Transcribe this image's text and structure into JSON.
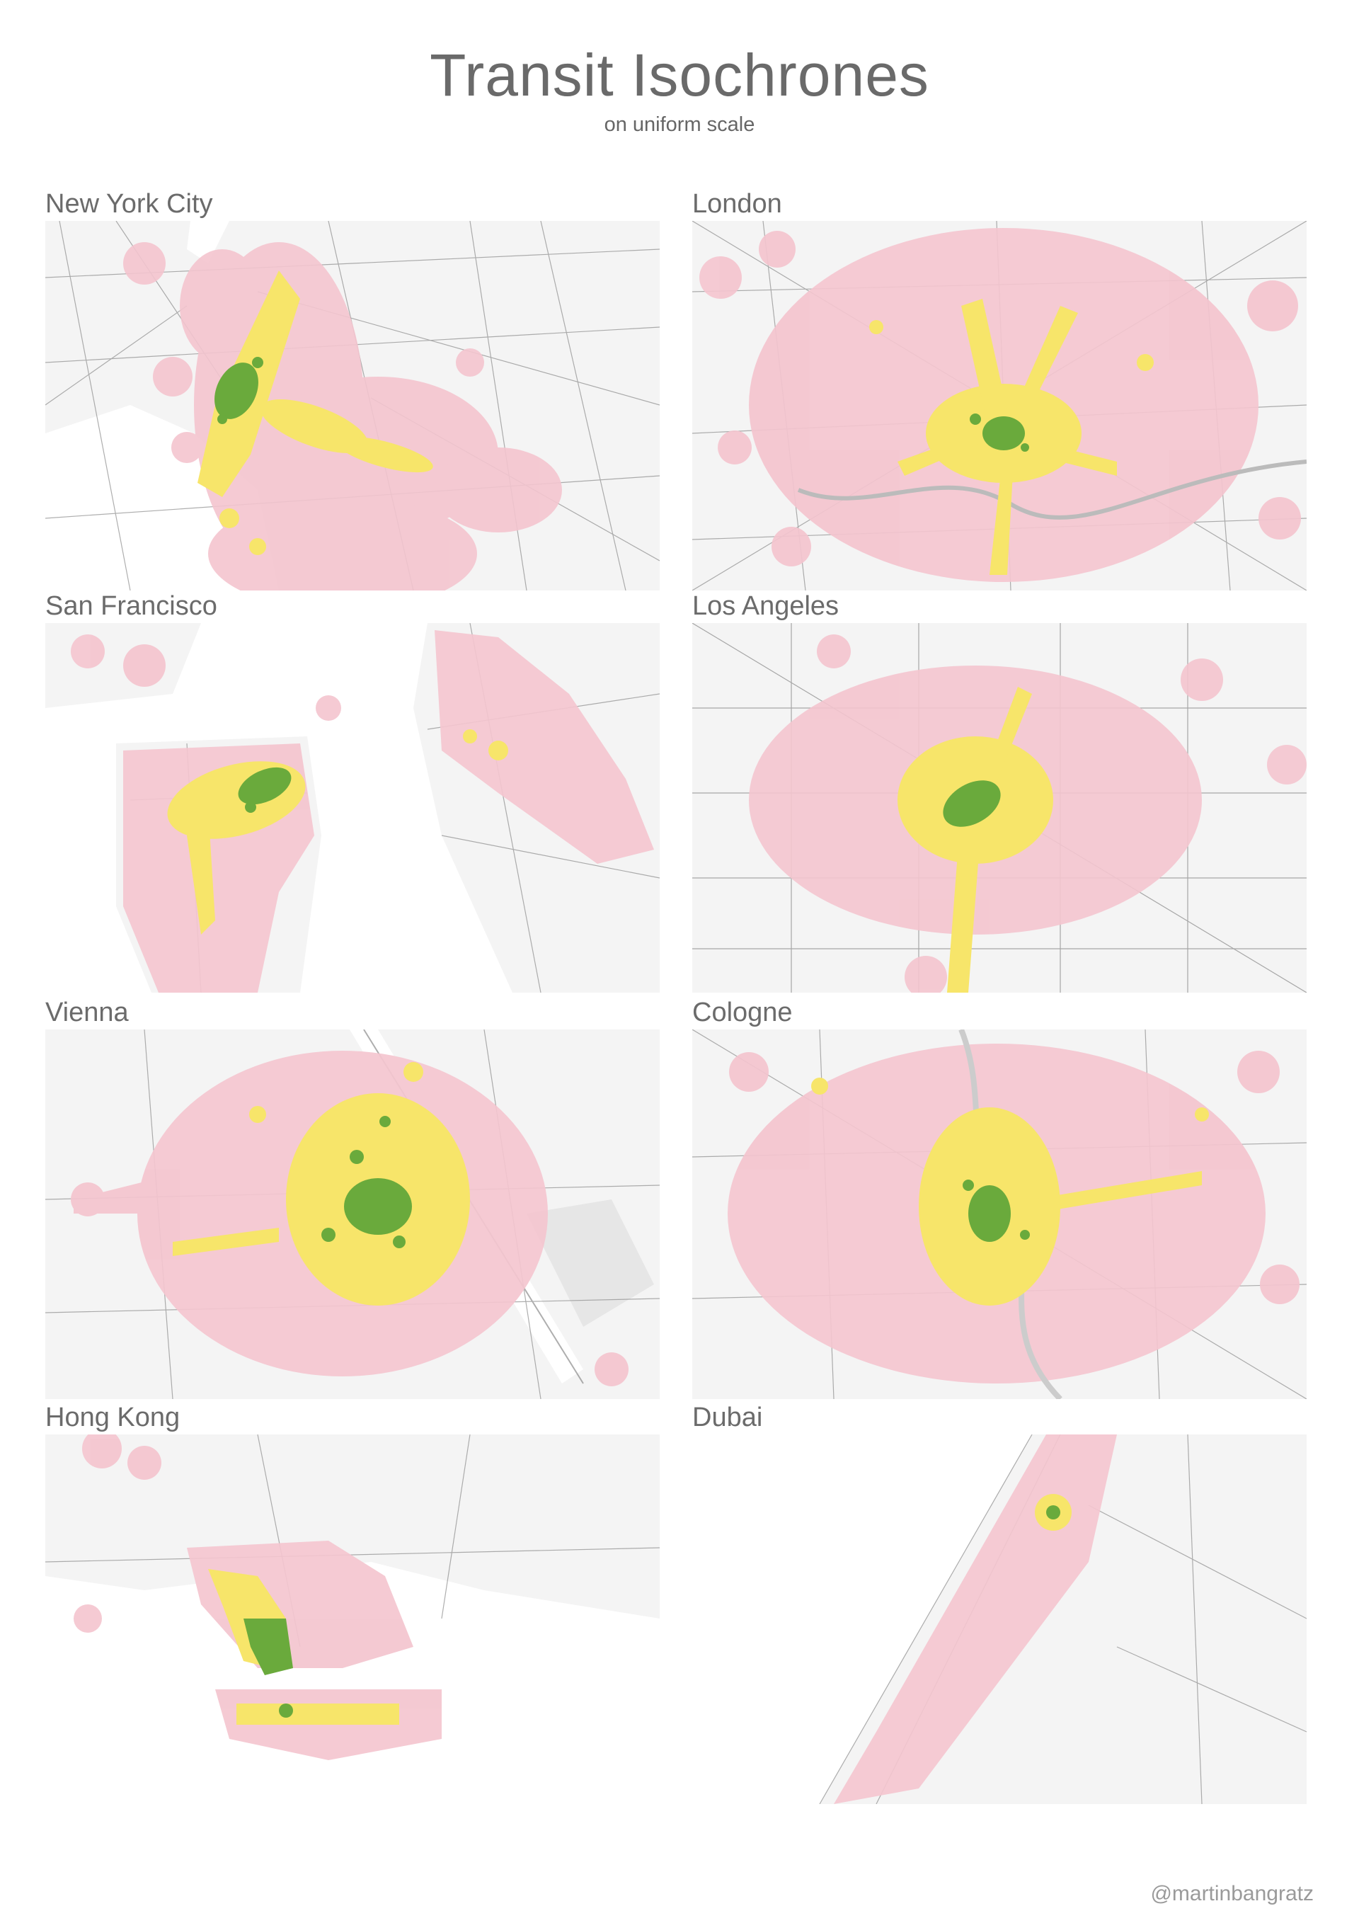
{
  "title": "Transit Isochrones",
  "subtitle": "on uniform scale",
  "credit": "@martinbangratz",
  "colors": {
    "map_land": "#f6f6f6",
    "map_water": "#ffffff",
    "road": "#8c8c8c",
    "zone_outer": "#f4c5cf",
    "zone_middle": "#f7e56a",
    "zone_inner": "#6aaa3c"
  },
  "panels": [
    {
      "city": "New York City"
    },
    {
      "city": "London"
    },
    {
      "city": "San Francisco"
    },
    {
      "city": "Los Angeles"
    },
    {
      "city": "Vienna"
    },
    {
      "city": "Cologne"
    },
    {
      "city": "Hong Kong"
    },
    {
      "city": "Dubai"
    }
  ]
}
